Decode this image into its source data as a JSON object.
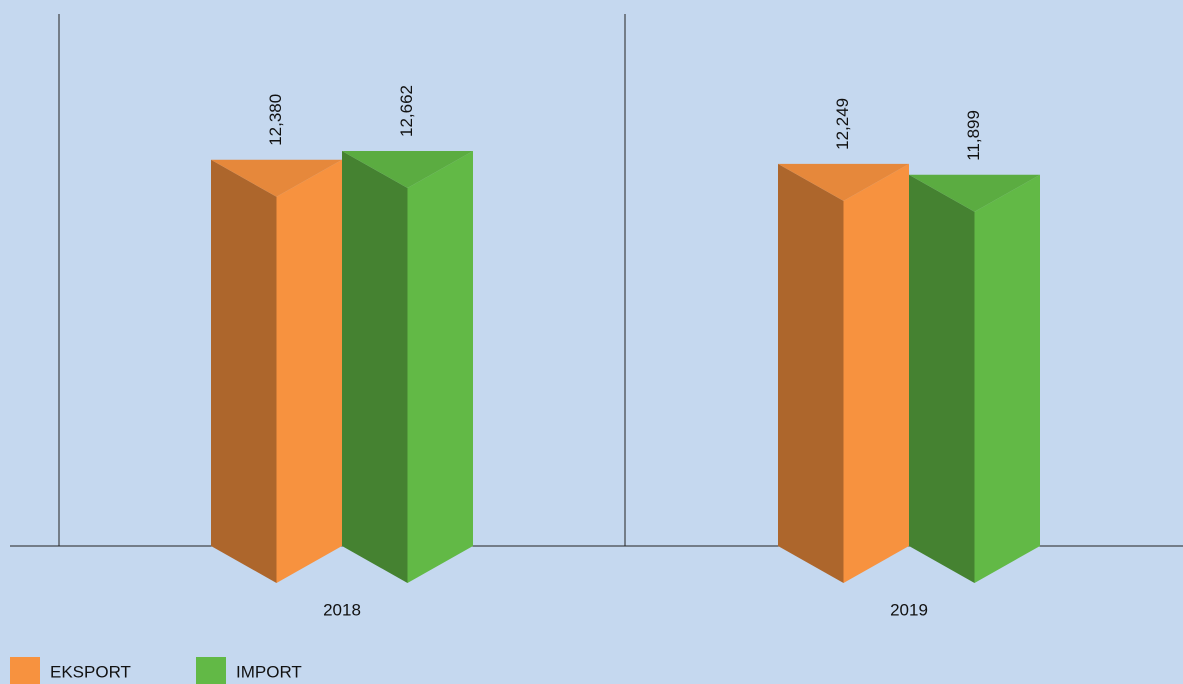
{
  "chart_data": {
    "type": "prism-bar",
    "categories": [
      "2018",
      "2019"
    ],
    "series": [
      {
        "name": "EKSPORT",
        "color": "#f7923f",
        "values": [
          12380,
          12249
        ],
        "value_labels": [
          "12,380",
          "12,249"
        ]
      },
      {
        "name": "IMPORT",
        "color": "#62b946",
        "values": [
          12662,
          11899
        ],
        "value_labels": [
          "12,662",
          "11,899"
        ]
      }
    ]
  }
}
